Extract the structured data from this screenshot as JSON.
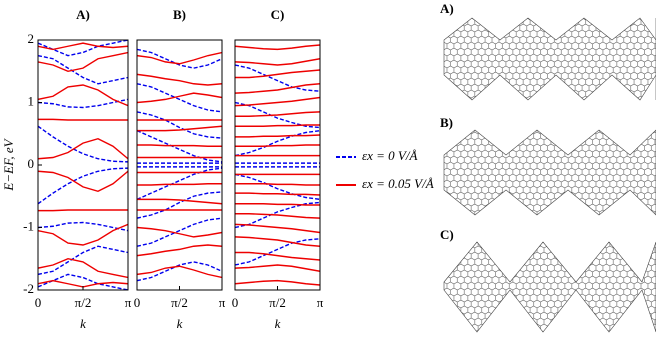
{
  "chart_data": [
    {
      "type": "line",
      "title": "A)",
      "ylabel": "E−EF, eV",
      "xlabel": "k",
      "x": [
        0,
        0.5236,
        1.0472,
        1.5708,
        2.0944,
        2.618,
        3.1416
      ],
      "xlim": [
        0,
        3.1416
      ],
      "ylim": [
        -2,
        2
      ],
      "xticks": [
        0,
        {
          "value": 1.5708,
          "label": "π/2"
        },
        {
          "value": 3.1416,
          "label": "π"
        }
      ],
      "yticks": [
        -2,
        -1,
        0,
        1,
        2
      ],
      "series": [
        {
          "group": 0,
          "values": [
            0.62,
            0.45,
            0.3,
            0.18,
            0.1,
            0.06,
            0.05
          ]
        },
        {
          "group": 0,
          "values": [
            -0.62,
            -0.45,
            -0.3,
            -0.18,
            -0.1,
            -0.06,
            -0.05
          ]
        },
        {
          "group": 0,
          "values": [
            1.0,
            0.98,
            0.93,
            0.92,
            0.95,
            1.0,
            1.05
          ]
        },
        {
          "group": 0,
          "values": [
            -1.0,
            -0.98,
            -0.93,
            -0.92,
            -0.95,
            -1.0,
            -1.05
          ]
        },
        {
          "group": 0,
          "values": [
            1.75,
            1.7,
            1.55,
            1.4,
            1.3,
            1.35,
            1.4
          ]
        },
        {
          "group": 0,
          "values": [
            -1.75,
            -1.7,
            -1.55,
            -1.4,
            -1.3,
            -1.35,
            -1.4
          ]
        },
        {
          "group": 0,
          "values": [
            1.95,
            1.85,
            1.75,
            1.8,
            1.9,
            1.95,
            2.0
          ]
        },
        {
          "group": 0,
          "values": [
            -1.95,
            -1.85,
            -1.75,
            -1.8,
            -1.9,
            -1.95,
            -2.0
          ]
        },
        {
          "group": 1,
          "values": [
            0.1,
            0.12,
            0.2,
            0.35,
            0.42,
            0.3,
            0.1
          ]
        },
        {
          "group": 1,
          "values": [
            -0.1,
            -0.12,
            -0.2,
            -0.35,
            -0.42,
            -0.3,
            -0.1
          ]
        },
        {
          "group": 1,
          "values": [
            0.73,
            0.73,
            0.72,
            0.72,
            0.72,
            0.72,
            0.72
          ]
        },
        {
          "group": 1,
          "values": [
            -0.73,
            -0.73,
            -0.72,
            -0.72,
            -0.72,
            -0.72,
            -0.72
          ]
        },
        {
          "group": 1,
          "values": [
            1.05,
            1.1,
            1.25,
            1.28,
            1.2,
            1.05,
            0.95
          ]
        },
        {
          "group": 1,
          "values": [
            -1.05,
            -1.1,
            -1.25,
            -1.28,
            -1.2,
            -1.05,
            -0.95
          ]
        },
        {
          "group": 1,
          "values": [
            1.65,
            1.6,
            1.5,
            1.55,
            1.7,
            1.75,
            1.8
          ]
        },
        {
          "group": 1,
          "values": [
            -1.65,
            -1.6,
            -1.5,
            -1.55,
            -1.7,
            -1.75,
            -1.8
          ]
        },
        {
          "group": 1,
          "values": [
            1.9,
            1.85,
            1.9,
            1.95,
            1.9,
            1.88,
            1.9
          ]
        },
        {
          "group": 1,
          "values": [
            -1.9,
            -1.85,
            -1.9,
            -1.95,
            -1.9,
            -1.88,
            -1.9
          ]
        }
      ]
    },
    {
      "type": "line",
      "title": "B)",
      "xlabel": "k",
      "x": [
        0,
        0.5236,
        1.0472,
        1.5708,
        2.0944,
        2.618,
        3.1416
      ],
      "xlim": [
        0,
        3.1416
      ],
      "ylim": [
        -2,
        2
      ],
      "xticks": [
        0,
        {
          "value": 1.5708,
          "label": "π/2"
        },
        {
          "value": 3.1416,
          "label": "π"
        }
      ],
      "series": [
        {
          "group": 0,
          "values": [
            0.55,
            0.45,
            0.35,
            0.25,
            0.15,
            0.08,
            0.05
          ]
        },
        {
          "group": 0,
          "values": [
            -0.55,
            -0.45,
            -0.35,
            -0.25,
            -0.15,
            -0.08,
            -0.05
          ]
        },
        {
          "group": 0,
          "values": [
            0.03,
            0.03,
            0.03,
            0.03,
            0.03,
            0.03,
            0.03
          ]
        },
        {
          "group": 0,
          "values": [
            -0.03,
            -0.03,
            -0.03,
            -0.03,
            -0.03,
            -0.03,
            -0.03
          ]
        },
        {
          "group": 0,
          "values": [
            0.85,
            0.8,
            0.72,
            0.6,
            0.5,
            0.45,
            0.43
          ]
        },
        {
          "group": 0,
          "values": [
            -0.85,
            -0.8,
            -0.72,
            -0.6,
            -0.5,
            -0.45,
            -0.43
          ]
        },
        {
          "group": 0,
          "values": [
            1.3,
            1.25,
            1.15,
            1.05,
            0.95,
            0.88,
            0.85
          ]
        },
        {
          "group": 0,
          "values": [
            -1.3,
            -1.25,
            -1.15,
            -1.05,
            -0.95,
            -0.88,
            -0.85
          ]
        },
        {
          "group": 0,
          "values": [
            1.85,
            1.8,
            1.7,
            1.6,
            1.55,
            1.6,
            1.7
          ]
        },
        {
          "group": 0,
          "values": [
            -1.85,
            -1.8,
            -1.7,
            -1.6,
            -1.55,
            -1.6,
            -1.7
          ]
        },
        {
          "group": 1,
          "values": [
            0.12,
            0.12,
            0.12,
            0.12,
            0.12,
            0.12,
            0.12
          ]
        },
        {
          "group": 1,
          "values": [
            -0.12,
            -0.12,
            -0.12,
            -0.12,
            -0.12,
            -0.12,
            -0.12
          ]
        },
        {
          "group": 1,
          "values": [
            0.32,
            0.32,
            0.31,
            0.31,
            0.31,
            0.3,
            0.3
          ]
        },
        {
          "group": 1,
          "values": [
            -0.32,
            -0.32,
            -0.31,
            -0.31,
            -0.31,
            -0.3,
            -0.3
          ]
        },
        {
          "group": 1,
          "values": [
            0.55,
            0.55,
            0.55,
            0.56,
            0.58,
            0.6,
            0.62
          ]
        },
        {
          "group": 1,
          "values": [
            -0.55,
            -0.55,
            -0.55,
            -0.56,
            -0.58,
            -0.6,
            -0.62
          ]
        },
        {
          "group": 1,
          "values": [
            0.72,
            0.72,
            0.72,
            0.72,
            0.72,
            0.72,
            0.72
          ]
        },
        {
          "group": 1,
          "values": [
            -0.72,
            -0.72,
            -0.72,
            -0.72,
            -0.72,
            -0.72,
            -0.72
          ]
        },
        {
          "group": 1,
          "values": [
            1.0,
            1.02,
            1.05,
            1.1,
            1.15,
            1.12,
            1.08
          ]
        },
        {
          "group": 1,
          "values": [
            -1.0,
            -1.02,
            -1.05,
            -1.1,
            -1.15,
            -1.12,
            -1.08
          ]
        },
        {
          "group": 1,
          "values": [
            1.45,
            1.42,
            1.38,
            1.35,
            1.3,
            1.28,
            1.3
          ]
        },
        {
          "group": 1,
          "values": [
            -1.45,
            -1.42,
            -1.38,
            -1.35,
            -1.3,
            -1.28,
            -1.3
          ]
        },
        {
          "group": 1,
          "values": [
            1.75,
            1.72,
            1.65,
            1.62,
            1.68,
            1.75,
            1.8
          ]
        },
        {
          "group": 1,
          "values": [
            -1.75,
            -1.72,
            -1.65,
            -1.62,
            -1.68,
            -1.75,
            -1.8
          ]
        }
      ]
    },
    {
      "type": "line",
      "title": "C)",
      "xlabel": "k",
      "x": [
        0,
        0.5236,
        1.0472,
        1.5708,
        2.0944,
        2.618,
        3.1416
      ],
      "xlim": [
        0,
        3.1416
      ],
      "ylim": [
        -2,
        2
      ],
      "xticks": [
        0,
        {
          "value": 1.5708,
          "label": "π/2"
        },
        {
          "value": 3.1416,
          "label": "π"
        }
      ],
      "series": [
        {
          "group": 0,
          "values": [
            0.03,
            0.03,
            0.03,
            0.03,
            0.03,
            0.03,
            0.03
          ]
        },
        {
          "group": 0,
          "values": [
            -0.03,
            -0.03,
            -0.03,
            -0.03,
            -0.03,
            -0.03,
            -0.03
          ]
        },
        {
          "group": 0,
          "values": [
            0.15,
            0.2,
            0.28,
            0.38,
            0.46,
            0.52,
            0.55
          ]
        },
        {
          "group": 0,
          "values": [
            -0.15,
            -0.2,
            -0.28,
            -0.38,
            -0.46,
            -0.52,
            -0.55
          ]
        },
        {
          "group": 0,
          "values": [
            1.0,
            0.95,
            0.85,
            0.75,
            0.68,
            0.62,
            0.6
          ]
        },
        {
          "group": 0,
          "values": [
            -1.0,
            -0.95,
            -0.85,
            -0.75,
            -0.68,
            -0.62,
            -0.6
          ]
        },
        {
          "group": 0,
          "values": [
            1.6,
            1.55,
            1.45,
            1.35,
            1.25,
            1.2,
            1.18
          ]
        },
        {
          "group": 0,
          "values": [
            -1.6,
            -1.55,
            -1.45,
            -1.35,
            -1.25,
            -1.2,
            -1.18
          ]
        },
        {
          "group": 1,
          "values": [
            0.15,
            0.15,
            0.15,
            0.15,
            0.15,
            0.15,
            0.15
          ]
        },
        {
          "group": 1,
          "values": [
            -0.15,
            -0.15,
            -0.15,
            -0.15,
            -0.15,
            -0.15,
            -0.15
          ]
        },
        {
          "group": 1,
          "values": [
            0.3,
            0.3,
            0.3,
            0.31,
            0.31,
            0.32,
            0.32
          ]
        },
        {
          "group": 1,
          "values": [
            -0.3,
            -0.3,
            -0.3,
            -0.31,
            -0.31,
            -0.32,
            -0.32
          ]
        },
        {
          "group": 1,
          "values": [
            0.45,
            0.45,
            0.46,
            0.46,
            0.47,
            0.47,
            0.48
          ]
        },
        {
          "group": 1,
          "values": [
            -0.45,
            -0.45,
            -0.46,
            -0.46,
            -0.47,
            -0.47,
            -0.48
          ]
        },
        {
          "group": 1,
          "values": [
            0.62,
            0.62,
            0.62,
            0.63,
            0.63,
            0.64,
            0.64
          ]
        },
        {
          "group": 1,
          "values": [
            -0.62,
            -0.62,
            -0.62,
            -0.63,
            -0.63,
            -0.64,
            -0.64
          ]
        },
        {
          "group": 1,
          "values": [
            0.78,
            0.78,
            0.79,
            0.8,
            0.82,
            0.84,
            0.85
          ]
        },
        {
          "group": 1,
          "values": [
            -0.78,
            -0.78,
            -0.79,
            -0.8,
            -0.82,
            -0.84,
            -0.85
          ]
        },
        {
          "group": 1,
          "values": [
            0.95,
            0.96,
            0.98,
            1.0,
            1.02,
            1.05,
            1.08
          ]
        },
        {
          "group": 1,
          "values": [
            -0.95,
            -0.96,
            -0.98,
            -1.0,
            -1.02,
            -1.05,
            -1.08
          ]
        },
        {
          "group": 1,
          "values": [
            1.15,
            1.16,
            1.18,
            1.2,
            1.24,
            1.28,
            1.3
          ]
        },
        {
          "group": 1,
          "values": [
            -1.15,
            -1.16,
            -1.18,
            -1.2,
            -1.24,
            -1.28,
            -1.3
          ]
        },
        {
          "group": 1,
          "values": [
            1.4,
            1.4,
            1.42,
            1.45,
            1.48,
            1.5,
            1.52
          ]
        },
        {
          "group": 1,
          "values": [
            -1.4,
            -1.4,
            -1.42,
            -1.45,
            -1.48,
            -1.5,
            -1.52
          ]
        },
        {
          "group": 1,
          "values": [
            1.65,
            1.64,
            1.62,
            1.6,
            1.62,
            1.66,
            1.7
          ]
        },
        {
          "group": 1,
          "values": [
            -1.65,
            -1.64,
            -1.62,
            -1.6,
            -1.62,
            -1.66,
            -1.7
          ]
        },
        {
          "group": 1,
          "values": [
            1.9,
            1.88,
            1.86,
            1.85,
            1.87,
            1.9,
            1.92
          ]
        },
        {
          "group": 1,
          "values": [
            -1.9,
            -1.88,
            -1.86,
            -1.85,
            -1.87,
            -1.9,
            -1.92
          ]
        }
      ]
    }
  ],
  "legend": [
    {
      "label": "εx = 0 V/Å",
      "color": "#0000ee",
      "dash": true
    },
    {
      "label": "εx = 0.05 V/Å",
      "color": "#ee0000",
      "dash": false
    }
  ],
  "structures": [
    {
      "label": "A)"
    },
    {
      "label": "B)"
    },
    {
      "label": "C)"
    }
  ]
}
